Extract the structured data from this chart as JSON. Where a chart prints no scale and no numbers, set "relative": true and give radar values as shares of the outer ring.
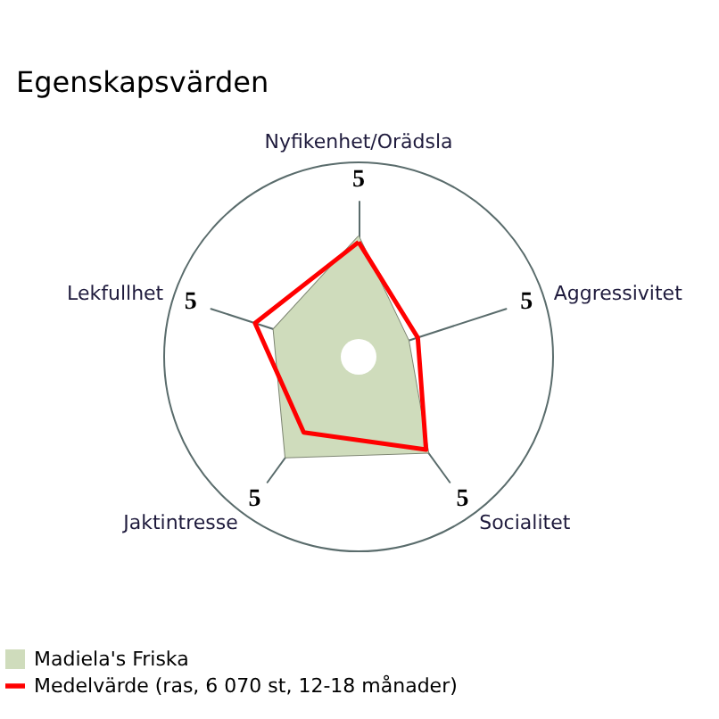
{
  "chart_data": {
    "type": "radar",
    "title": "Egenskapsvärden",
    "categories": [
      "Nyfikenhet/Orädsla",
      "Aggressivitet",
      "Socialitet",
      "Jaktintresse",
      "Lekfullhet"
    ],
    "series": [
      {
        "name": "Madiela's Friska",
        "type": "area",
        "color": "#cfdcbc",
        "values": [
          0.62,
          0.27,
          0.61,
          0.64,
          0.46
        ]
      },
      {
        "name": "Medelvärde (ras, 6 070 st, 12-18 månader)",
        "color": "#ff0000",
        "values": [
          0.59,
          0.32,
          0.59,
          0.48,
          0.56
        ]
      }
    ],
    "relative": true,
    "annotations": [
      "5",
      "5",
      "5",
      "5",
      "5"
    ],
    "legend": "bottom left"
  }
}
